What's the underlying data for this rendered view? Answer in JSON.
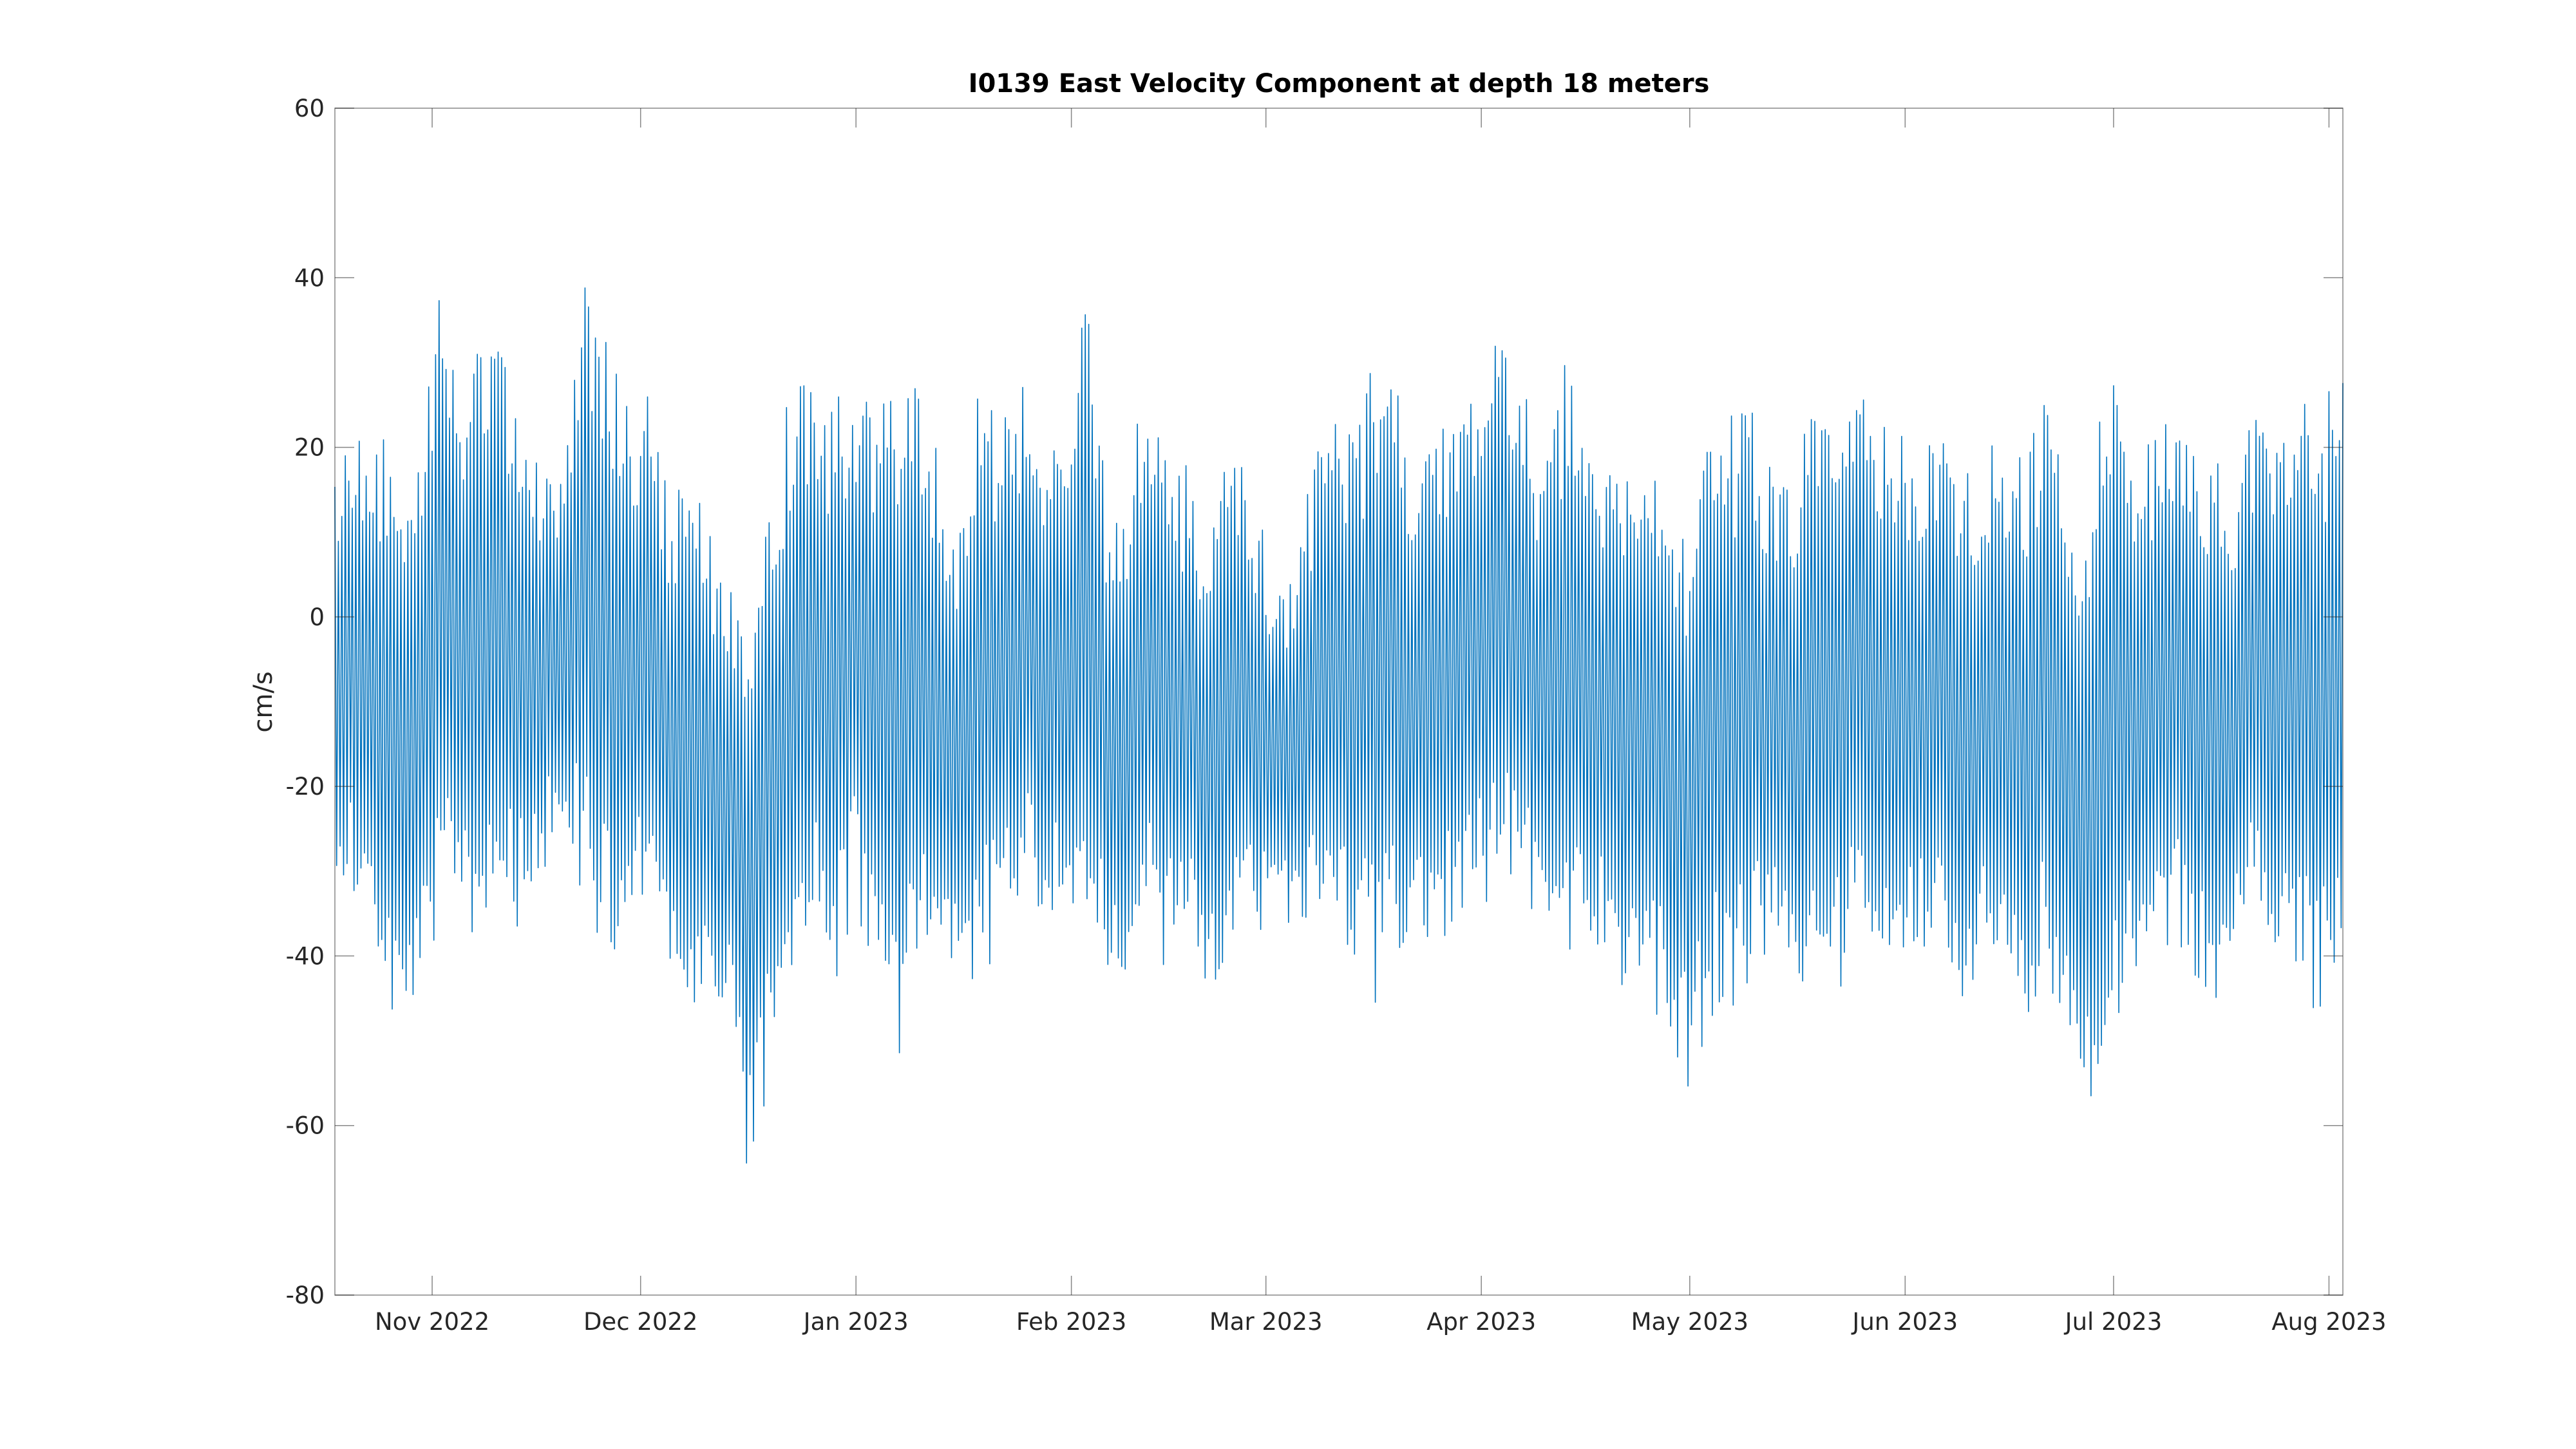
{
  "chart_data": {
    "type": "line",
    "title": "I0139 East Velocity Component at depth 18 meters",
    "xlabel": "",
    "ylabel": "cm/s",
    "ylim": [
      -80,
      60
    ],
    "yticks": [
      60,
      40,
      20,
      0,
      -20,
      -40,
      -60,
      -80
    ],
    "xlim": [
      "2022-10-18",
      "2023-08-03"
    ],
    "xticks": [
      {
        "date": "2022-11-01",
        "label": "Nov 2022"
      },
      {
        "date": "2022-12-01",
        "label": "Dec 2022"
      },
      {
        "date": "2023-01-01",
        "label": "Jan 2023"
      },
      {
        "date": "2023-02-01",
        "label": "Feb 2023"
      },
      {
        "date": "2023-03-01",
        "label": "Mar 2023"
      },
      {
        "date": "2023-04-01",
        "label": "Apr 2023"
      },
      {
        "date": "2023-05-01",
        "label": "May 2023"
      },
      {
        "date": "2023-06-01",
        "label": "Jun 2023"
      },
      {
        "date": "2023-07-01",
        "label": "Jul 2023"
      },
      {
        "date": "2023-08-01",
        "label": "Aug 2023"
      }
    ],
    "grid": false,
    "color": "#0072BD",
    "series": [
      {
        "x": [
          "2022-10-18",
          "2022-10-21",
          "2022-10-24",
          "2022-10-27",
          "2022-10-30",
          "2022-11-02",
          "2022-11-05",
          "2022-11-08",
          "2022-11-11",
          "2022-11-14",
          "2022-11-17",
          "2022-11-20",
          "2022-11-23",
          "2022-11-26",
          "2022-11-29",
          "2022-12-02",
          "2022-12-05",
          "2022-12-08",
          "2022-12-11",
          "2022-12-14",
          "2022-12-17",
          "2022-12-20",
          "2022-12-23",
          "2022-12-26",
          "2022-12-29",
          "2023-01-01",
          "2023-01-04",
          "2023-01-07",
          "2023-01-10",
          "2023-01-13",
          "2023-01-16",
          "2023-01-19",
          "2023-01-22",
          "2023-01-25",
          "2023-01-28",
          "2023-01-31",
          "2023-02-03",
          "2023-02-06",
          "2023-02-09",
          "2023-02-12",
          "2023-02-15",
          "2023-02-18",
          "2023-02-21",
          "2023-02-24",
          "2023-02-27",
          "2023-03-02",
          "2023-03-05",
          "2023-03-08",
          "2023-03-11",
          "2023-03-14",
          "2023-03-17",
          "2023-03-20",
          "2023-03-23",
          "2023-03-26",
          "2023-03-29",
          "2023-04-01",
          "2023-04-04",
          "2023-04-07",
          "2023-04-10",
          "2023-04-13",
          "2023-04-16",
          "2023-04-19",
          "2023-04-22",
          "2023-04-25",
          "2023-04-28",
          "2023-05-01",
          "2023-05-04",
          "2023-05-07",
          "2023-05-10",
          "2023-05-13",
          "2023-05-16",
          "2023-05-19",
          "2023-05-22",
          "2023-05-25",
          "2023-05-28",
          "2023-05-31",
          "2023-06-03",
          "2023-06-06",
          "2023-06-09",
          "2023-06-12",
          "2023-06-15",
          "2023-06-18",
          "2023-06-21",
          "2023-06-24",
          "2023-06-27",
          "2023-06-30",
          "2023-07-03",
          "2023-07-06",
          "2023-07-09",
          "2023-07-12",
          "2023-07-15",
          "2023-07-18",
          "2023-07-21",
          "2023-07-24",
          "2023-07-27",
          "2023-07-30",
          "2023-08-02"
        ],
        "max": [
          18,
          22,
          24,
          22,
          20,
          38,
          29,
          33,
          32,
          26,
          16,
          18,
          43,
          33,
          28,
          27,
          17,
          16,
          13,
          6,
          2,
          17,
          30,
          28,
          26,
          27,
          27,
          27,
          27,
          20,
          13,
          29,
          23,
          28,
          19,
          23,
          40,
          16,
          18,
          33,
          18,
          18,
          10,
          22,
          16,
          6,
          6,
          19,
          26,
          24,
          32,
          27,
          16,
          25,
          25,
          27,
          36,
          28,
          17,
          30,
          22,
          17,
          17,
          23,
          13,
          10,
          23,
          24,
          27,
          16,
          19,
          27,
          19,
          28,
          22,
          24,
          20,
          23,
          18,
          21,
          22,
          19,
          26,
          21,
          10,
          32,
          21,
          21,
          24,
          20,
          20,
          17,
          26,
          22,
          27,
          26,
          28
        ],
        "min": [
          -30,
          -35,
          -44,
          -49,
          -44,
          -37,
          -36,
          -38,
          -34,
          -38,
          -30,
          -25,
          -34,
          -40,
          -41,
          -36,
          -42,
          -44,
          -52,
          -48,
          -70,
          -52,
          -44,
          -34,
          -44,
          -34,
          -44,
          -56,
          -39,
          -42,
          -46,
          -42,
          -40,
          -33,
          -38,
          -35,
          -43,
          -42,
          -44,
          -40,
          -42,
          -38,
          -45,
          -40,
          -38,
          -38,
          -38,
          -35,
          -38,
          -42,
          -46,
          -41,
          -40,
          -38,
          -38,
          -35,
          -32,
          -34,
          -35,
          -43,
          -40,
          -41,
          -45,
          -47,
          -50,
          -57,
          -48,
          -47,
          -44,
          -40,
          -42,
          -46,
          -45,
          -40,
          -46,
          -40,
          -38,
          -42,
          -48,
          -44,
          -40,
          -50,
          -42,
          -48,
          -60,
          -54,
          -45,
          -42,
          -40,
          -40,
          -50,
          -40,
          -38,
          -40,
          -42,
          -50,
          -46
        ]
      }
    ]
  }
}
